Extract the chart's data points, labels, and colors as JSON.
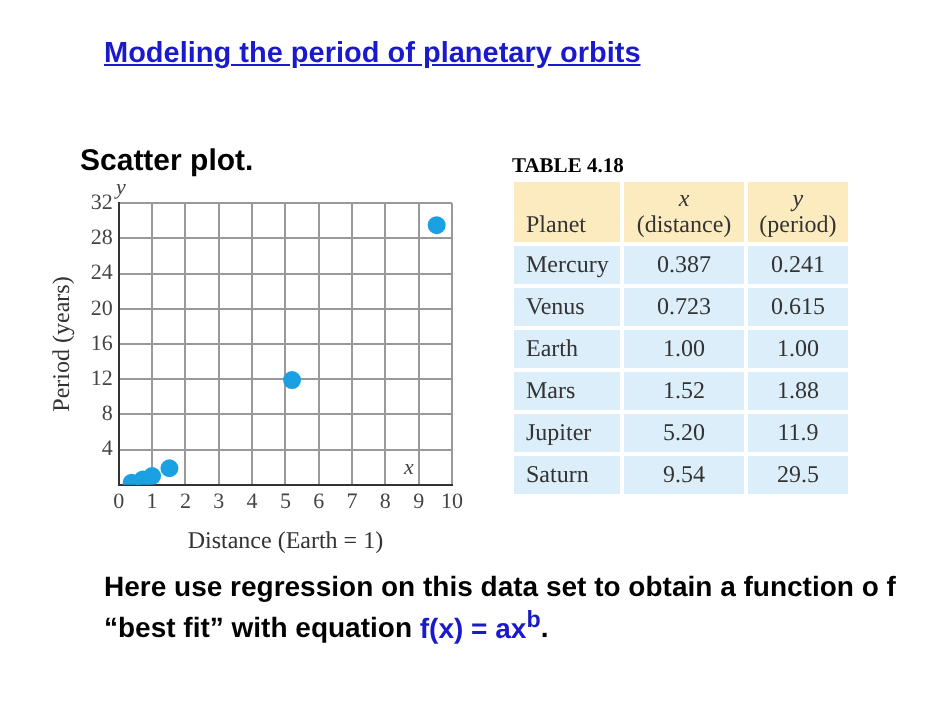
{
  "chart_data": [
    {
      "type": "scatter",
      "title": "Modeling the period of planetary orbits",
      "subtitle": "Scatter plot.",
      "xlabel": "Distance (Earth = 1)",
      "ylabel": "Period (years)",
      "x": [
        0.387,
        0.723,
        1.0,
        1.52,
        5.2,
        9.54
      ],
      "values": [
        0.241,
        0.615,
        1.0,
        1.88,
        11.9,
        29.5
      ],
      "color": "#1ba1e2",
      "marker": "circle",
      "grid": true,
      "xlim": [
        0,
        10
      ],
      "xticks": [
        0,
        1,
        2,
        3,
        4,
        5,
        6,
        7,
        8,
        9,
        10
      ],
      "ylim": [
        0,
        32
      ],
      "yticks": [
        {
          "value": 0,
          "label": null
        },
        4,
        8,
        12,
        16,
        20,
        24,
        28,
        32
      ],
      "annotations": [
        "x",
        "y",
        "Here use regression on this data set to obtain a function o f “best fit” with equation f(x) = ax$^{b}$."
      ]
    },
    {
      "type": "other",
      "title": "TABLE 4.18",
      "legend_title": "Planet",
      "categories": [
        "Mercury",
        "Venus",
        "Earth",
        "Mars",
        "Jupiter",
        "Saturn"
      ],
      "series": [
        {
          "name": "x (distance)",
          "values": [
            0.387,
            0.723,
            1.0,
            1.52,
            5.2,
            9.54
          ],
          "value_labels": [
            "0.387",
            "0.723",
            "1.00",
            "1.52",
            "5.20",
            "9.54"
          ]
        },
        {
          "name": "y (period)",
          "values": [
            0.241,
            0.615,
            1.0,
            1.88,
            11.9,
            29.5
          ],
          "value_labels": [
            "0.241",
            "0.615",
            "1.00",
            "1.88",
            "11.9",
            "29.5"
          ]
        }
      ]
    }
  ]
}
